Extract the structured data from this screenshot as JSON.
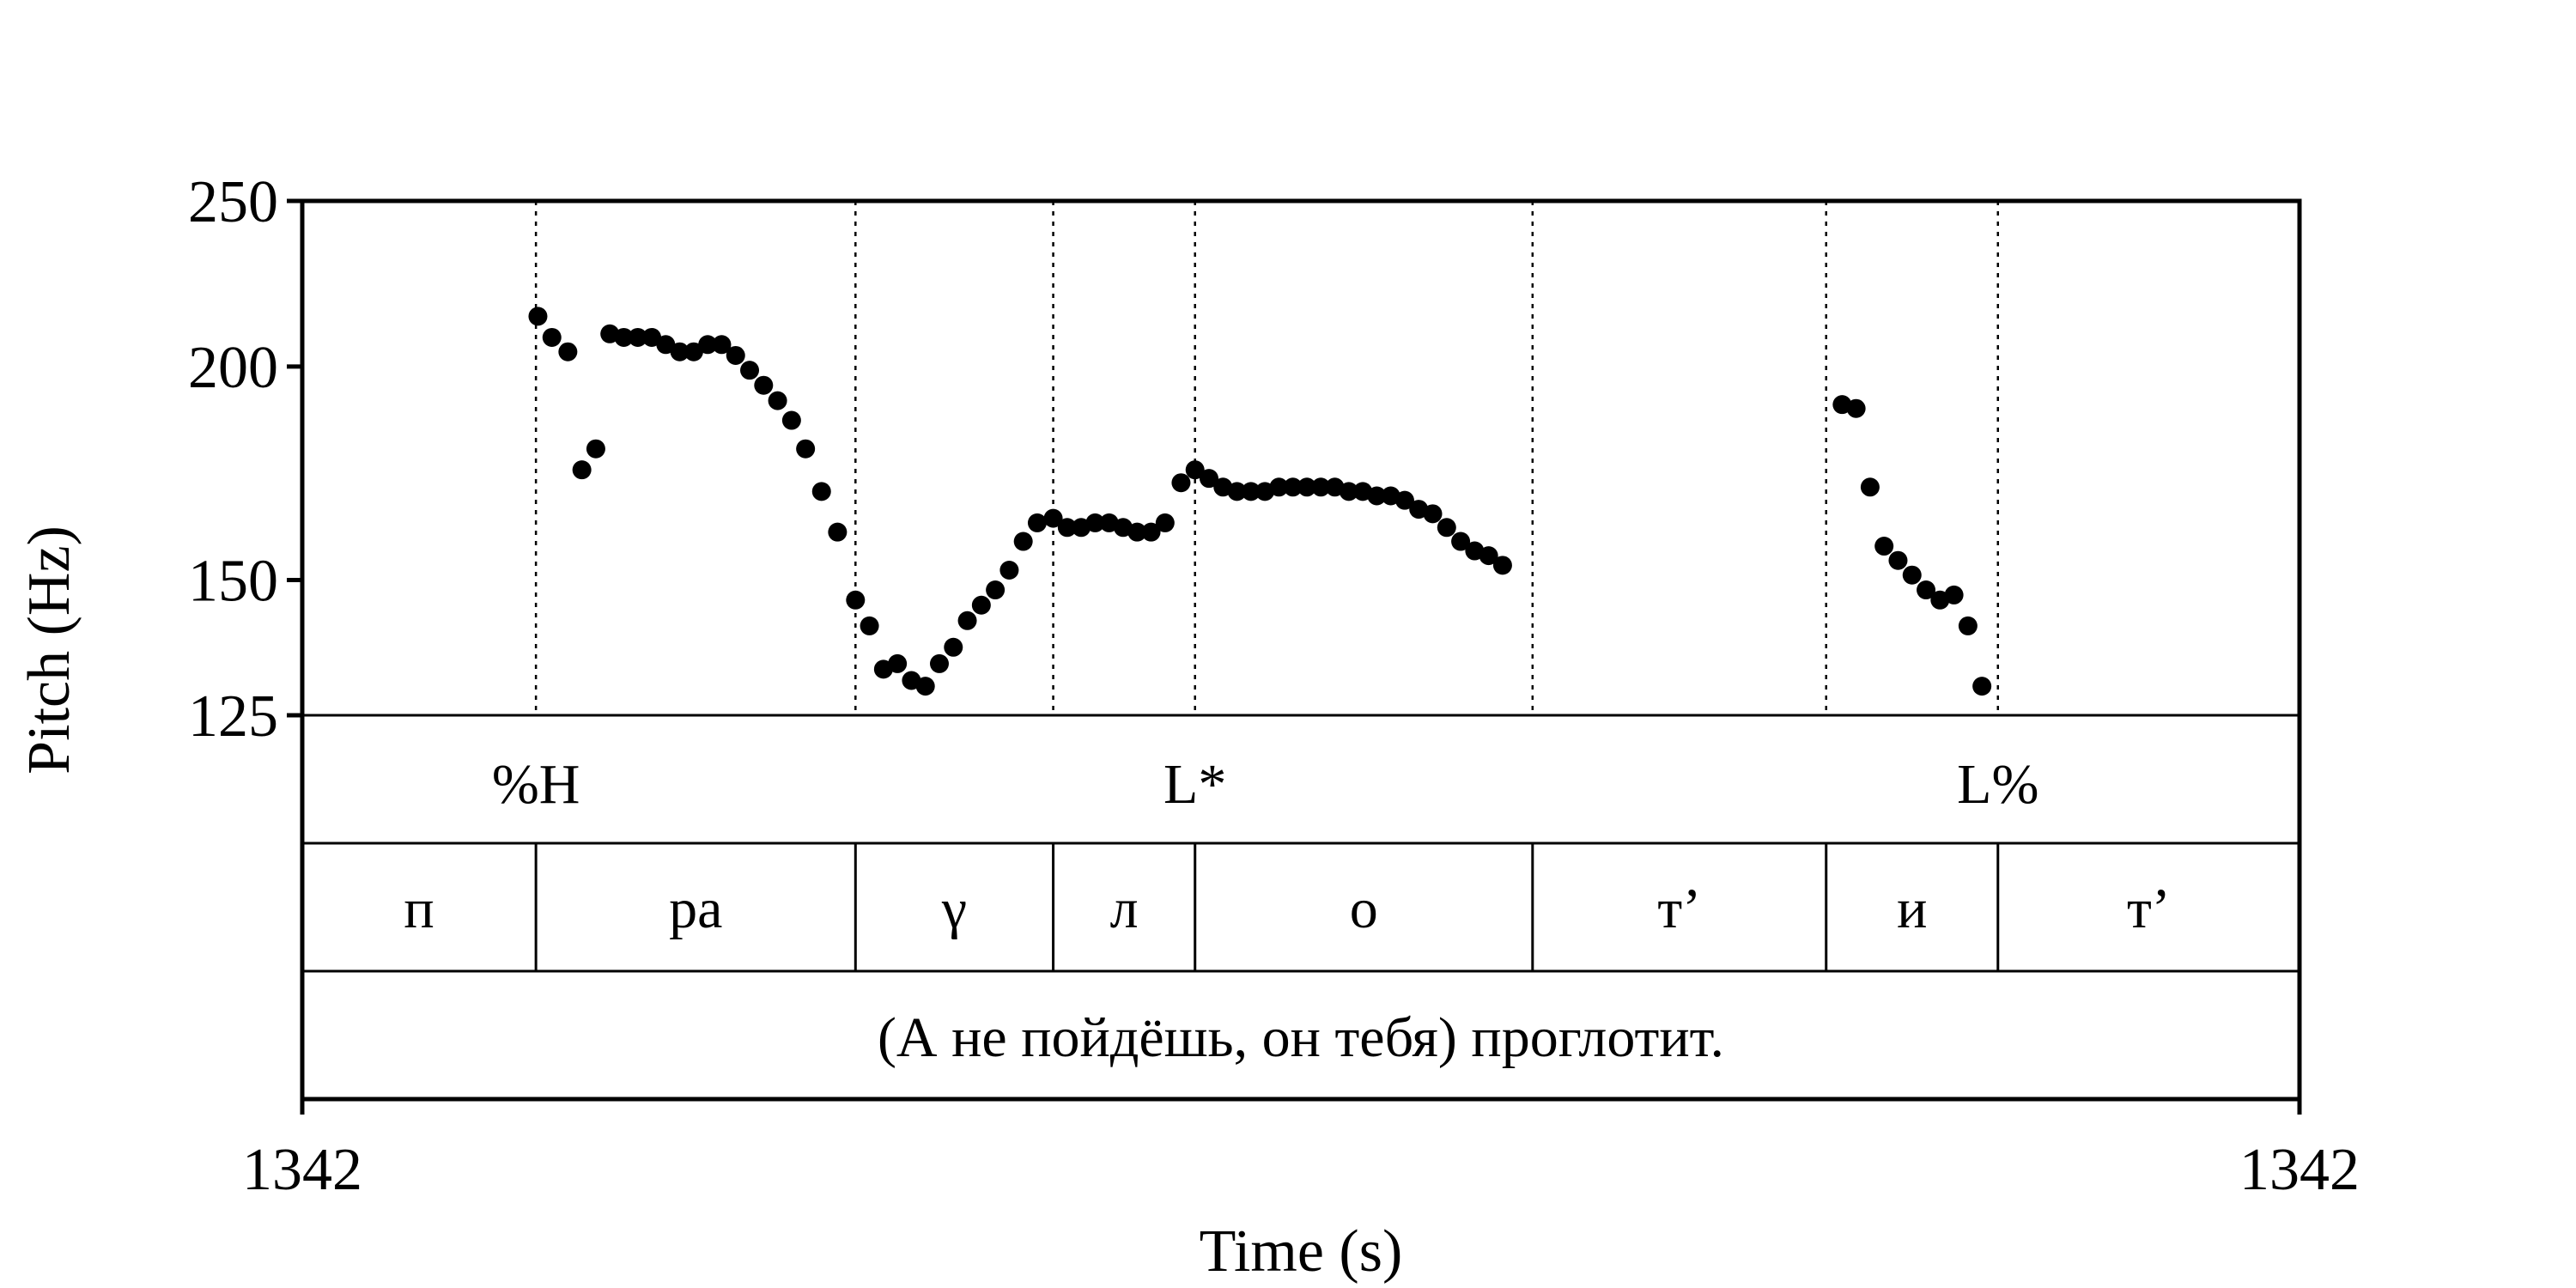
{
  "chart_data": {
    "type": "scatter",
    "xlabel": "Time (s)",
    "ylabel": "Pitch (Hz)",
    "x_start_label": "1342",
    "x_end_label": "1342",
    "ylim": [
      125,
      250
    ],
    "y_ticks": [
      125,
      150,
      200,
      250
    ],
    "y_tick_labels": [
      "125",
      "150",
      "200",
      "250"
    ],
    "y_scale": "log",
    "x_range": [
      0,
      1
    ],
    "colors": {
      "points": "#000000",
      "lines": "#000000"
    },
    "boundaries": [
      0.117,
      0.277,
      0.376,
      0.447,
      0.616,
      0.763,
      0.849
    ],
    "tones": [
      {
        "label": "%H",
        "x": 0.117
      },
      {
        "label": "L*",
        "x": 0.447
      },
      {
        "label": "L%",
        "x": 0.849
      }
    ],
    "segments": [
      {
        "label": "п",
        "start": 0.0,
        "end": 0.117
      },
      {
        "label": "ра",
        "start": 0.117,
        "end": 0.277
      },
      {
        "label": "γ",
        "start": 0.277,
        "end": 0.376
      },
      {
        "label": "л",
        "start": 0.376,
        "end": 0.447
      },
      {
        "label": "о",
        "start": 0.447,
        "end": 0.616
      },
      {
        "label": "т’",
        "start": 0.616,
        "end": 0.763
      },
      {
        "label": "и",
        "start": 0.763,
        "end": 0.849
      },
      {
        "label": "т’",
        "start": 0.849,
        "end": 1.0
      }
    ],
    "utterance": "(А не пойдёшь, он тебя) проглотит.",
    "points": [
      [
        0.118,
        214
      ],
      [
        0.125,
        208
      ],
      [
        0.133,
        204
      ],
      [
        0.14,
        174
      ],
      [
        0.147,
        179
      ],
      [
        0.154,
        209
      ],
      [
        0.161,
        208
      ],
      [
        0.168,
        208
      ],
      [
        0.175,
        208
      ],
      [
        0.182,
        206
      ],
      [
        0.189,
        204
      ],
      [
        0.196,
        204
      ],
      [
        0.203,
        206
      ],
      [
        0.21,
        206
      ],
      [
        0.217,
        203
      ],
      [
        0.224,
        199
      ],
      [
        0.231,
        195
      ],
      [
        0.238,
        191
      ],
      [
        0.245,
        186
      ],
      [
        0.252,
        179
      ],
      [
        0.26,
        169
      ],
      [
        0.268,
        160
      ],
      [
        0.277,
        146
      ],
      [
        0.284,
        141
      ],
      [
        0.291,
        133
      ],
      [
        0.298,
        134
      ],
      [
        0.305,
        131
      ],
      [
        0.312,
        130
      ],
      [
        0.319,
        134
      ],
      [
        0.326,
        137
      ],
      [
        0.333,
        142
      ],
      [
        0.34,
        145
      ],
      [
        0.347,
        148
      ],
      [
        0.354,
        152
      ],
      [
        0.361,
        158
      ],
      [
        0.368,
        162
      ],
      [
        0.376,
        163
      ],
      [
        0.383,
        161
      ],
      [
        0.39,
        161
      ],
      [
        0.397,
        162
      ],
      [
        0.404,
        162
      ],
      [
        0.411,
        161
      ],
      [
        0.418,
        160
      ],
      [
        0.425,
        160
      ],
      [
        0.432,
        162
      ],
      [
        0.44,
        171
      ],
      [
        0.447,
        174
      ],
      [
        0.454,
        172
      ],
      [
        0.461,
        170
      ],
      [
        0.468,
        169
      ],
      [
        0.475,
        169
      ],
      [
        0.482,
        169
      ],
      [
        0.489,
        170
      ],
      [
        0.496,
        170
      ],
      [
        0.503,
        170
      ],
      [
        0.51,
        170
      ],
      [
        0.517,
        170
      ],
      [
        0.524,
        169
      ],
      [
        0.531,
        169
      ],
      [
        0.538,
        168
      ],
      [
        0.545,
        168
      ],
      [
        0.552,
        167
      ],
      [
        0.559,
        165
      ],
      [
        0.566,
        164
      ],
      [
        0.573,
        161
      ],
      [
        0.58,
        158
      ],
      [
        0.587,
        156
      ],
      [
        0.594,
        155
      ],
      [
        0.601,
        153
      ],
      [
        0.771,
        190
      ],
      [
        0.778,
        189
      ],
      [
        0.785,
        170
      ],
      [
        0.792,
        157
      ],
      [
        0.799,
        154
      ],
      [
        0.806,
        151
      ],
      [
        0.813,
        148
      ],
      [
        0.82,
        146
      ],
      [
        0.827,
        147
      ],
      [
        0.834,
        141
      ],
      [
        0.841,
        130
      ]
    ]
  }
}
